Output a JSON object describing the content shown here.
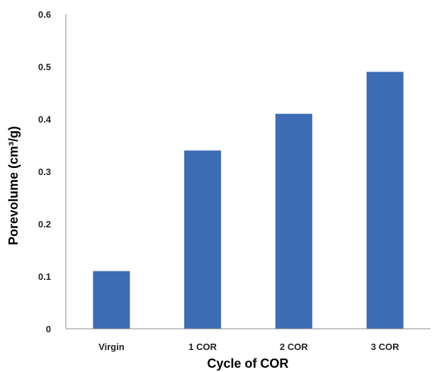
{
  "chart_data": {
    "type": "bar",
    "title": "",
    "xlabel": "Cycle of COR",
    "ylabel": "Porevolume (cm³/g)",
    "categories": [
      "Virgin",
      "1 COR",
      "2 COR",
      "3 COR"
    ],
    "values": [
      0.11,
      0.34,
      0.41,
      0.49
    ],
    "ylim": [
      0,
      0.6
    ],
    "yticks": [
      "0",
      "0.1",
      "0.2",
      "0.3",
      "0.4",
      "0.5",
      "0.6"
    ],
    "bar_color": "#3C6CB4",
    "axis_color": "#888888",
    "grid": false,
    "legend": "none"
  }
}
